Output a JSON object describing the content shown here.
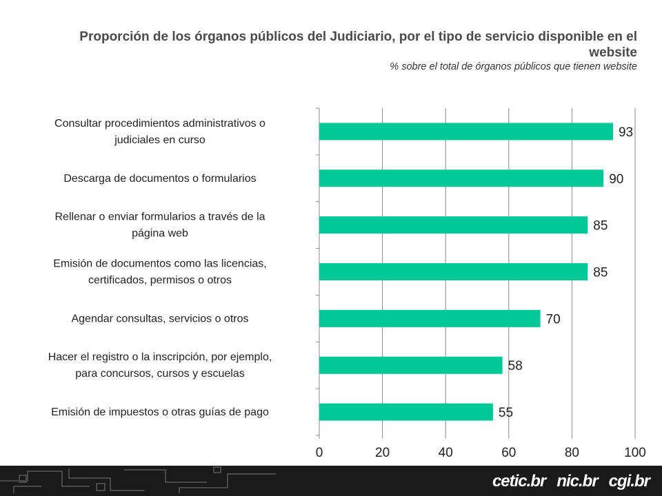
{
  "chart_data": {
    "type": "bar",
    "orientation": "horizontal",
    "title": "Proporción de los órganos públicos del Judiciario, por el tipo de servicio disponible en el website",
    "subtitle": "% sobre el total de órganos públicos que tienen website",
    "categories": [
      [
        "Consultar procedimientos administrativos o",
        "judiciales en curso"
      ],
      [
        "Descarga de documentos o formularios"
      ],
      [
        "Rellenar o enviar formularios a través de la",
        "página web"
      ],
      [
        "Emisión de documentos como las licencias,",
        "certificados, permisos o otros"
      ],
      [
        "Agendar consultas, servicios o otros"
      ],
      [
        "Hacer el registro o la inscripción, por ejemplo,",
        "para concursos, cursos y escuelas"
      ],
      [
        "Emisión de impuestos o otras guías de pago"
      ]
    ],
    "values": [
      93,
      90,
      85,
      85,
      70,
      58,
      55
    ],
    "xlim": [
      0,
      100
    ],
    "xticks": [
      0,
      20,
      40,
      60,
      80,
      100
    ],
    "grid": true,
    "bar_color": "#00c896",
    "xlabel": "",
    "ylabel": ""
  },
  "footer": {
    "logos": [
      "cetic.br",
      "nic.br",
      "cgi.br"
    ],
    "background": "#1a1a1a",
    "accent": "#f4d000"
  }
}
